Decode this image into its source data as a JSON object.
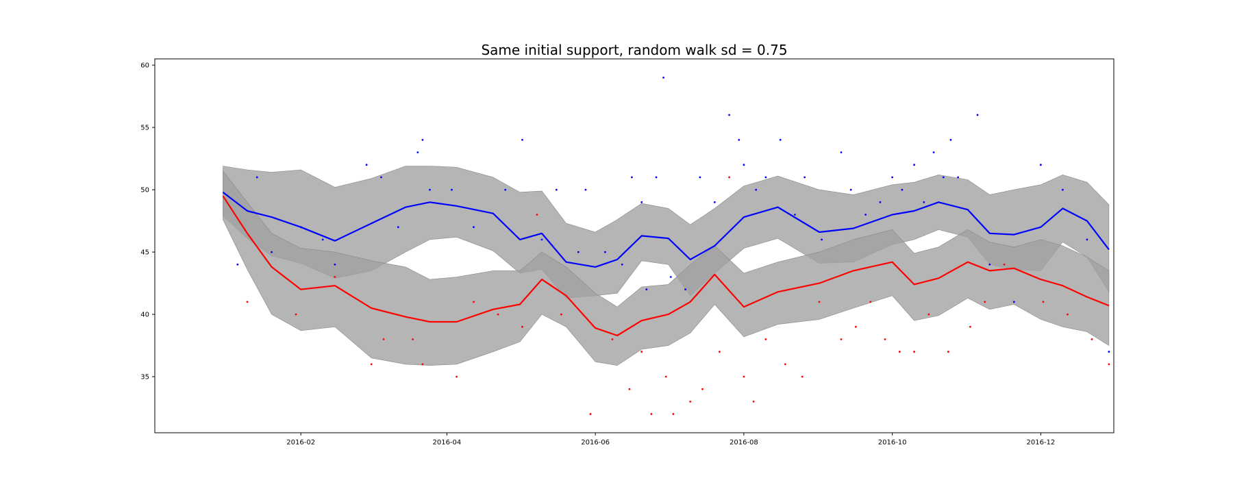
{
  "chart_data": {
    "type": "line",
    "title": "Same initial support, random walk sd = 0.75",
    "xlabel": "",
    "ylabel": "",
    "xlim": [
      "2015-12-03",
      "2016-12-31"
    ],
    "ylim": [
      30.5,
      60.5
    ],
    "x_ticks": [
      "2016-02",
      "2016-04",
      "2016-06",
      "2016-08",
      "2016-10",
      "2016-12"
    ],
    "y_ticks": [
      35,
      40,
      45,
      50,
      55,
      60
    ],
    "grid": false,
    "legend": "none",
    "colors": {
      "blue": "#0000ff",
      "red": "#ff0000",
      "band": "#a0a0a0"
    },
    "series": [
      {
        "color": "blue",
        "x": [
          "2015-12-31",
          "2016-01-10",
          "2016-01-20",
          "2016-02-01",
          "2016-02-15",
          "2016-03-01",
          "2016-03-15",
          "2016-03-25",
          "2016-04-05",
          "2016-04-20",
          "2016-05-01",
          "2016-05-10",
          "2016-05-20",
          "2016-06-01",
          "2016-06-10",
          "2016-06-20",
          "2016-07-01",
          "2016-07-10",
          "2016-07-20",
          "2016-08-01",
          "2016-08-15",
          "2016-09-01",
          "2016-09-15",
          "2016-10-01",
          "2016-10-10",
          "2016-10-20",
          "2016-11-01",
          "2016-11-10",
          "2016-11-20",
          "2016-12-01",
          "2016-12-10",
          "2016-12-20",
          "2016-12-29"
        ],
        "y": [
          49.8,
          48.3,
          47.8,
          47.0,
          45.9,
          47.3,
          48.6,
          49.0,
          48.7,
          48.1,
          46.0,
          46.5,
          44.2,
          43.8,
          44.4,
          46.3,
          46.1,
          44.4,
          45.5,
          47.8,
          48.6,
          46.6,
          46.9,
          48.0,
          48.3,
          49.0,
          48.4,
          46.5,
          46.4,
          47.0,
          48.5,
          47.5,
          45.2
        ],
        "upper": [
          51.9,
          51.6,
          51.4,
          51.6,
          50.2,
          50.9,
          51.9,
          51.9,
          51.8,
          51.0,
          49.8,
          49.9,
          47.3,
          46.6,
          47.6,
          48.9,
          48.5,
          47.2,
          48.5,
          50.3,
          51.1,
          50.0,
          49.6,
          50.4,
          50.6,
          51.2,
          50.8,
          49.6,
          50.0,
          50.4,
          51.2,
          50.6,
          48.8
        ],
        "lower": [
          47.9,
          46.1,
          44.7,
          44.1,
          42.9,
          43.5,
          45.0,
          46.0,
          46.2,
          45.1,
          43.3,
          43.6,
          41.3,
          41.5,
          41.7,
          44.3,
          44.0,
          41.5,
          43.3,
          45.3,
          46.1,
          44.1,
          44.2,
          45.6,
          46.0,
          46.8,
          46.2,
          44.0,
          43.6,
          43.5,
          45.8,
          44.6,
          41.8
        ]
      },
      {
        "color": "red",
        "x": [
          "2015-12-31",
          "2016-01-10",
          "2016-01-20",
          "2016-02-01",
          "2016-02-15",
          "2016-03-01",
          "2016-03-15",
          "2016-03-25",
          "2016-04-05",
          "2016-04-20",
          "2016-05-01",
          "2016-05-10",
          "2016-05-20",
          "2016-06-01",
          "2016-06-10",
          "2016-06-20",
          "2016-07-01",
          "2016-07-10",
          "2016-07-20",
          "2016-08-01",
          "2016-08-15",
          "2016-09-01",
          "2016-09-15",
          "2016-10-01",
          "2016-10-10",
          "2016-10-20",
          "2016-11-01",
          "2016-11-10",
          "2016-11-20",
          "2016-12-01",
          "2016-12-10",
          "2016-12-20",
          "2016-12-29"
        ],
        "y": [
          49.5,
          46.5,
          43.8,
          42.0,
          42.3,
          40.5,
          39.8,
          39.4,
          39.4,
          40.4,
          40.8,
          42.8,
          41.5,
          38.9,
          38.3,
          39.5,
          40.0,
          41.0,
          43.2,
          40.6,
          41.8,
          42.5,
          43.5,
          44.2,
          42.4,
          42.9,
          44.2,
          43.5,
          43.7,
          42.8,
          42.3,
          41.4,
          40.7
        ],
        "upper": [
          51.5,
          49.0,
          46.5,
          45.3,
          45.0,
          44.3,
          43.8,
          42.8,
          43.0,
          43.5,
          43.5,
          45.0,
          43.8,
          41.7,
          40.6,
          42.2,
          42.4,
          44.0,
          45.5,
          43.3,
          44.2,
          45.0,
          46.0,
          46.8,
          44.9,
          45.4,
          46.8,
          45.8,
          45.4,
          46.0,
          45.5,
          44.6,
          43.5
        ],
        "lower": [
          47.6,
          43.6,
          40.0,
          38.7,
          39.0,
          36.5,
          36.0,
          35.9,
          36.0,
          37.0,
          37.8,
          40.0,
          39.0,
          36.2,
          35.9,
          37.2,
          37.5,
          38.5,
          40.8,
          38.2,
          39.2,
          39.6,
          40.5,
          41.5,
          39.5,
          39.9,
          41.3,
          40.4,
          40.8,
          39.6,
          39.0,
          38.6,
          37.5
        ]
      }
    ],
    "scatter": [
      {
        "color": "blue",
        "points": [
          [
            "2016-01-06",
            44
          ],
          [
            "2016-01-14",
            51
          ],
          [
            "2016-01-20",
            45
          ],
          [
            "2016-02-01",
            47
          ],
          [
            "2016-02-10",
            46
          ],
          [
            "2016-02-15",
            44
          ],
          [
            "2016-02-28",
            52
          ],
          [
            "2016-03-05",
            51
          ],
          [
            "2016-03-12",
            47
          ],
          [
            "2016-03-20",
            53
          ],
          [
            "2016-03-22",
            54
          ],
          [
            "2016-03-25",
            50
          ],
          [
            "2016-04-03",
            50
          ],
          [
            "2016-04-12",
            47
          ],
          [
            "2016-04-25",
            50
          ],
          [
            "2016-05-02",
            54
          ],
          [
            "2016-05-10",
            46
          ],
          [
            "2016-05-16",
            50
          ],
          [
            "2016-05-25",
            45
          ],
          [
            "2016-05-28",
            50
          ],
          [
            "2016-06-05",
            45
          ],
          [
            "2016-06-12",
            44
          ],
          [
            "2016-06-16",
            51
          ],
          [
            "2016-06-20",
            49
          ],
          [
            "2016-06-22",
            42
          ],
          [
            "2016-06-26",
            51
          ],
          [
            "2016-06-29",
            59
          ],
          [
            "2016-07-02",
            43
          ],
          [
            "2016-07-08",
            42
          ],
          [
            "2016-07-14",
            51
          ],
          [
            "2016-07-20",
            49
          ],
          [
            "2016-07-26",
            56
          ],
          [
            "2016-07-30",
            54
          ],
          [
            "2016-08-01",
            52
          ],
          [
            "2016-08-06",
            50
          ],
          [
            "2016-08-10",
            51
          ],
          [
            "2016-08-16",
            54
          ],
          [
            "2016-08-22",
            48
          ],
          [
            "2016-08-26",
            51
          ],
          [
            "2016-09-02",
            46
          ],
          [
            "2016-09-10",
            53
          ],
          [
            "2016-09-14",
            50
          ],
          [
            "2016-09-20",
            48
          ],
          [
            "2016-09-26",
            49
          ],
          [
            "2016-10-01",
            51
          ],
          [
            "2016-10-05",
            50
          ],
          [
            "2016-10-10",
            52
          ],
          [
            "2016-10-14",
            49
          ],
          [
            "2016-10-18",
            53
          ],
          [
            "2016-10-22",
            51
          ],
          [
            "2016-10-25",
            54
          ],
          [
            "2016-10-28",
            51
          ],
          [
            "2016-11-05",
            56
          ],
          [
            "2016-11-10",
            44
          ],
          [
            "2016-11-20",
            41
          ],
          [
            "2016-12-01",
            52
          ],
          [
            "2016-12-10",
            50
          ],
          [
            "2016-12-20",
            46
          ],
          [
            "2016-12-29",
            37
          ]
        ]
      },
      {
        "color": "red",
        "points": [
          [
            "2016-01-10",
            41
          ],
          [
            "2016-01-30",
            40
          ],
          [
            "2016-02-15",
            43
          ],
          [
            "2016-03-01",
            36
          ],
          [
            "2016-03-06",
            38
          ],
          [
            "2016-03-18",
            38
          ],
          [
            "2016-03-22",
            36
          ],
          [
            "2016-04-05",
            35
          ],
          [
            "2016-04-12",
            41
          ],
          [
            "2016-04-22",
            40
          ],
          [
            "2016-05-02",
            39
          ],
          [
            "2016-05-08",
            48
          ],
          [
            "2016-05-18",
            40
          ],
          [
            "2016-05-30",
            32
          ],
          [
            "2016-06-08",
            38
          ],
          [
            "2016-06-15",
            34
          ],
          [
            "2016-06-20",
            37
          ],
          [
            "2016-06-24",
            32
          ],
          [
            "2016-06-30",
            35
          ],
          [
            "2016-07-03",
            32
          ],
          [
            "2016-07-10",
            33
          ],
          [
            "2016-07-15",
            34
          ],
          [
            "2016-07-22",
            37
          ],
          [
            "2016-07-26",
            51
          ],
          [
            "2016-08-01",
            35
          ],
          [
            "2016-08-05",
            33
          ],
          [
            "2016-08-10",
            38
          ],
          [
            "2016-08-18",
            36
          ],
          [
            "2016-08-25",
            35
          ],
          [
            "2016-09-01",
            41
          ],
          [
            "2016-09-10",
            38
          ],
          [
            "2016-09-16",
            39
          ],
          [
            "2016-09-22",
            41
          ],
          [
            "2016-09-28",
            38
          ],
          [
            "2016-10-04",
            37
          ],
          [
            "2016-10-10",
            37
          ],
          [
            "2016-10-16",
            40
          ],
          [
            "2016-10-24",
            37
          ],
          [
            "2016-11-02",
            39
          ],
          [
            "2016-11-08",
            41
          ],
          [
            "2016-11-16",
            44
          ],
          [
            "2016-12-02",
            41
          ],
          [
            "2016-12-12",
            40
          ],
          [
            "2016-12-22",
            38
          ],
          [
            "2016-12-29",
            36
          ]
        ]
      }
    ]
  }
}
